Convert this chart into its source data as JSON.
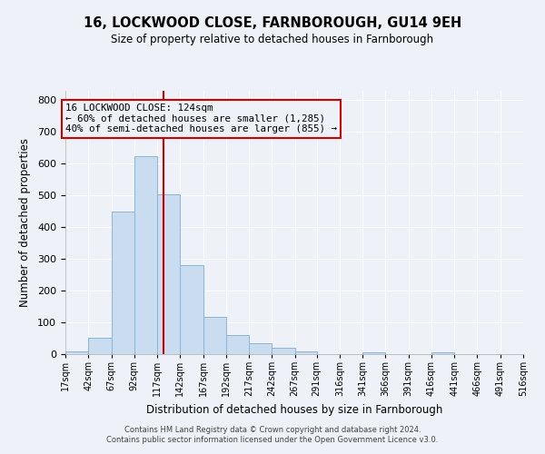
{
  "title1": "16, LOCKWOOD CLOSE, FARNBOROUGH, GU14 9EH",
  "title2": "Size of property relative to detached houses in Farnborough",
  "xlabel": "Distribution of detached houses by size in Farnborough",
  "ylabel": "Number of detached properties",
  "bin_edges": [
    17,
    42,
    67,
    92,
    117,
    142,
    167,
    192,
    217,
    242,
    267,
    291,
    316,
    341,
    366,
    391,
    416,
    441,
    466,
    491,
    516
  ],
  "bar_heights": [
    10,
    52,
    450,
    625,
    505,
    280,
    117,
    60,
    35,
    20,
    8,
    0,
    0,
    5,
    0,
    0,
    7,
    0,
    0,
    0
  ],
  "bar_color": "#c9dcf0",
  "bar_edge_color": "#8ab4d8",
  "property_size": 124,
  "vline_color": "#cc0000",
  "annotation_box_color": "#cc0000",
  "annotation_lines": [
    "16 LOCKWOOD CLOSE: 124sqm",
    "← 60% of detached houses are smaller (1,285)",
    "40% of semi-detached houses are larger (855) →"
  ],
  "ylim": [
    0,
    830
  ],
  "yticks": [
    0,
    100,
    200,
    300,
    400,
    500,
    600,
    700,
    800
  ],
  "footer1": "Contains HM Land Registry data © Crown copyright and database right 2024.",
  "footer2": "Contains public sector information licensed under the Open Government Licence v3.0.",
  "bg_color": "#eef2f8",
  "grid_color": "#ffffff"
}
